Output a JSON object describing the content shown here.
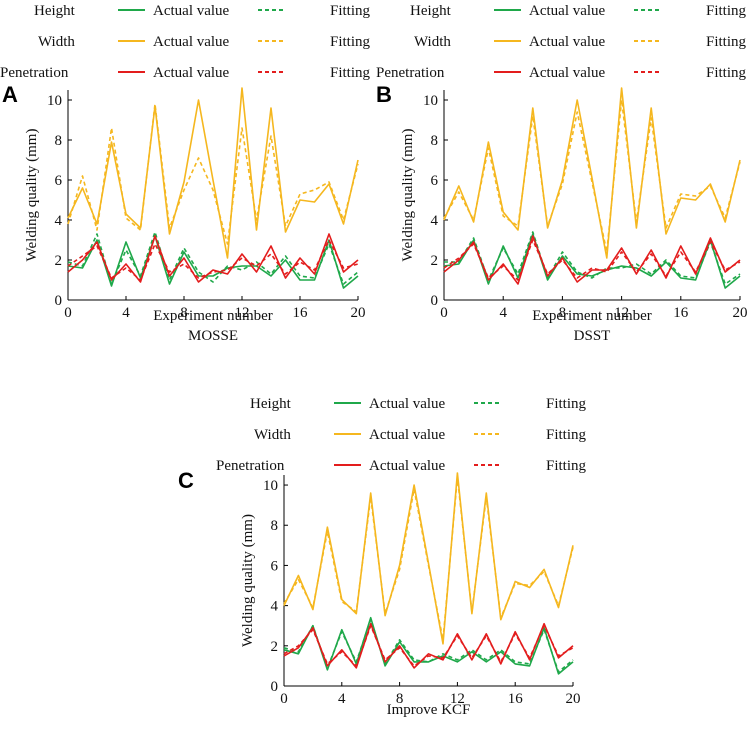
{
  "colors": {
    "height": "#1fa84a",
    "width": "#f5b71f",
    "penetration": "#e31d1d"
  },
  "legend": {
    "series_names": [
      "Height",
      "Width",
      "Penetration"
    ],
    "actual_label": "Actual value",
    "fit_label": "Fitting"
  },
  "chart_data": [
    {
      "type": "line",
      "panel_label": "A",
      "title": "MOSSE",
      "xlabel": "Experiment number",
      "ylabel": "Welding quality (mm)",
      "xlim": [
        0,
        20
      ],
      "ylim": [
        0,
        10.5
      ],
      "xticks": [
        0,
        4,
        8,
        12,
        16,
        20
      ],
      "yticks": [
        0,
        2,
        4,
        6,
        8,
        10
      ],
      "x": [
        0,
        1,
        2,
        3,
        4,
        5,
        6,
        7,
        8,
        9,
        10,
        11,
        12,
        13,
        14,
        15,
        16,
        17,
        18,
        19,
        20
      ],
      "series": [
        {
          "name": "Width Actual value",
          "key": "width",
          "dashed": false,
          "values": [
            4.1,
            5.6,
            3.8,
            7.9,
            4.3,
            3.6,
            9.7,
            3.3,
            5.9,
            10.0,
            6.0,
            2.1,
            10.6,
            3.5,
            9.6,
            3.4,
            5.0,
            4.9,
            5.8,
            3.8,
            7.0
          ]
        },
        {
          "name": "Width Fitting",
          "key": "width",
          "dashed": true,
          "values": [
            3.8,
            6.2,
            3.5,
            8.6,
            4.1,
            3.5,
            9.8,
            3.6,
            5.5,
            7.1,
            5.5,
            2.8,
            8.6,
            4.0,
            8.2,
            3.7,
            5.3,
            5.5,
            5.9,
            4.0,
            6.8
          ]
        },
        {
          "name": "Height Actual value",
          "key": "height",
          "dashed": false,
          "values": [
            1.7,
            1.6,
            3.0,
            0.7,
            2.9,
            1.1,
            3.2,
            0.8,
            2.4,
            1.2,
            1.2,
            1.6,
            1.7,
            1.7,
            1.2,
            2.0,
            1.0,
            1.0,
            3.0,
            0.6,
            1.2
          ]
        },
        {
          "name": "Height Fitting",
          "key": "height",
          "dashed": true,
          "values": [
            1.9,
            1.7,
            3.3,
            0.8,
            2.5,
            1.2,
            3.4,
            1.0,
            2.6,
            1.4,
            0.9,
            1.7,
            1.5,
            1.9,
            1.3,
            2.2,
            1.2,
            1.1,
            2.8,
            0.8,
            1.4
          ]
        },
        {
          "name": "Penetration Actual value",
          "key": "penetration",
          "dashed": false,
          "values": [
            1.4,
            2.0,
            2.9,
            1.0,
            1.8,
            0.9,
            3.2,
            1.2,
            2.1,
            0.9,
            1.5,
            1.3,
            2.3,
            1.4,
            2.7,
            1.1,
            2.1,
            1.3,
            3.3,
            1.4,
            2.0
          ]
        },
        {
          "name": "Penetration Fitting",
          "key": "penetration",
          "dashed": true,
          "values": [
            1.7,
            2.2,
            2.7,
            1.1,
            1.6,
            1.0,
            2.8,
            1.4,
            1.8,
            1.1,
            1.4,
            1.5,
            2.1,
            1.7,
            2.3,
            1.3,
            1.9,
            1.5,
            3.0,
            1.6,
            1.8
          ]
        }
      ]
    },
    {
      "type": "line",
      "panel_label": "B",
      "title": "DSST",
      "xlabel": "Experiment number",
      "ylabel": "Welding quality (mm)",
      "xlim": [
        0,
        20
      ],
      "ylim": [
        0,
        10.5
      ],
      "xticks": [
        0,
        4,
        8,
        12,
        16,
        20
      ],
      "yticks": [
        0,
        2,
        4,
        6,
        8,
        10
      ],
      "x": [
        0,
        1,
        2,
        3,
        4,
        5,
        6,
        7,
        8,
        9,
        10,
        11,
        12,
        13,
        14,
        15,
        16,
        17,
        18,
        19,
        20
      ],
      "series": [
        {
          "name": "Width Actual value",
          "key": "width",
          "dashed": false,
          "values": [
            4.0,
            5.7,
            3.9,
            7.9,
            4.4,
            3.5,
            9.6,
            3.6,
            6.0,
            10.0,
            6.1,
            2.1,
            10.6,
            3.6,
            9.6,
            3.3,
            5.1,
            5.0,
            5.8,
            3.9,
            7.0
          ]
        },
        {
          "name": "Width Fitting",
          "key": "width",
          "dashed": true,
          "values": [
            4.1,
            5.4,
            4.0,
            7.6,
            4.2,
            3.7,
            9.2,
            3.7,
            5.8,
            9.4,
            5.9,
            2.4,
            10.0,
            3.9,
            9.1,
            3.6,
            5.3,
            5.2,
            5.7,
            4.1,
            6.9
          ]
        },
        {
          "name": "Height Actual value",
          "key": "height",
          "dashed": false,
          "values": [
            1.7,
            1.8,
            3.0,
            0.8,
            2.7,
            1.1,
            3.3,
            1.0,
            2.2,
            1.3,
            1.2,
            1.5,
            1.7,
            1.6,
            1.2,
            1.9,
            1.1,
            1.0,
            3.0,
            0.6,
            1.2
          ]
        },
        {
          "name": "Height Fitting",
          "key": "height",
          "dashed": true,
          "values": [
            1.9,
            1.9,
            3.1,
            1.0,
            2.6,
            1.3,
            3.4,
            1.1,
            2.4,
            1.4,
            1.1,
            1.6,
            1.6,
            1.8,
            1.3,
            2.0,
            1.2,
            1.1,
            2.9,
            0.8,
            1.3
          ]
        },
        {
          "name": "Penetration Actual value",
          "key": "penetration",
          "dashed": false,
          "values": [
            1.4,
            2.0,
            2.9,
            1.0,
            1.8,
            0.8,
            3.2,
            1.2,
            2.1,
            0.9,
            1.5,
            1.5,
            2.6,
            1.3,
            2.5,
            1.1,
            2.7,
            1.3,
            3.1,
            1.4,
            2.0
          ]
        },
        {
          "name": "Penetration Fitting",
          "key": "penetration",
          "dashed": true,
          "values": [
            1.6,
            2.1,
            2.8,
            1.1,
            1.7,
            1.0,
            3.0,
            1.3,
            2.0,
            1.1,
            1.6,
            1.4,
            2.4,
            1.4,
            2.3,
            1.2,
            2.4,
            1.4,
            2.9,
            1.5,
            1.9
          ]
        }
      ]
    },
    {
      "type": "line",
      "panel_label": "C",
      "title": "Improve KCF",
      "xlabel": "",
      "ylabel": "Welding quality (mm)",
      "xlim": [
        0,
        20
      ],
      "ylim": [
        0,
        10.5
      ],
      "xticks": [
        0,
        4,
        8,
        12,
        16,
        20
      ],
      "yticks": [
        0,
        2,
        4,
        6,
        8,
        10
      ],
      "x": [
        0,
        1,
        2,
        3,
        4,
        5,
        6,
        7,
        8,
        9,
        10,
        11,
        12,
        13,
        14,
        15,
        16,
        17,
        18,
        19,
        20
      ],
      "series": [
        {
          "name": "Width Actual value",
          "key": "width",
          "dashed": false,
          "values": [
            4.0,
            5.5,
            3.8,
            7.9,
            4.3,
            3.6,
            9.6,
            3.5,
            6.0,
            10.0,
            6.1,
            2.1,
            10.6,
            3.6,
            9.6,
            3.3,
            5.2,
            4.9,
            5.8,
            3.9,
            7.0
          ]
        },
        {
          "name": "Width Fitting",
          "key": "width",
          "dashed": true,
          "values": [
            4.1,
            5.3,
            3.9,
            7.7,
            4.2,
            3.7,
            9.4,
            3.6,
            5.8,
            9.8,
            6.0,
            2.3,
            10.4,
            3.7,
            9.4,
            3.4,
            5.1,
            5.0,
            5.7,
            4.0,
            6.9
          ]
        },
        {
          "name": "Height Actual value",
          "key": "height",
          "dashed": false,
          "values": [
            1.8,
            1.6,
            3.0,
            0.8,
            2.8,
            1.1,
            3.4,
            1.0,
            2.2,
            1.2,
            1.2,
            1.5,
            1.2,
            1.7,
            1.2,
            1.7,
            1.1,
            1.0,
            2.9,
            0.6,
            1.2
          ]
        },
        {
          "name": "Height Fitting",
          "key": "height",
          "dashed": true,
          "values": [
            1.9,
            1.7,
            3.0,
            0.9,
            2.7,
            1.2,
            3.3,
            1.1,
            2.3,
            1.3,
            1.2,
            1.6,
            1.3,
            1.8,
            1.3,
            1.8,
            1.2,
            1.1,
            2.8,
            0.7,
            1.3
          ]
        },
        {
          "name": "Penetration Actual value",
          "key": "penetration",
          "dashed": false,
          "values": [
            1.5,
            1.9,
            2.9,
            1.0,
            1.8,
            0.9,
            3.1,
            1.2,
            2.0,
            0.9,
            1.6,
            1.3,
            2.6,
            1.3,
            2.6,
            1.1,
            2.7,
            1.3,
            3.1,
            1.4,
            2.0
          ]
        },
        {
          "name": "Penetration Fitting",
          "key": "penetration",
          "dashed": true,
          "values": [
            1.6,
            2.0,
            2.8,
            1.1,
            1.7,
            1.0,
            3.0,
            1.3,
            1.9,
            1.0,
            1.5,
            1.4,
            2.5,
            1.4,
            2.5,
            1.2,
            2.6,
            1.4,
            3.0,
            1.5,
            1.9
          ]
        }
      ]
    }
  ]
}
